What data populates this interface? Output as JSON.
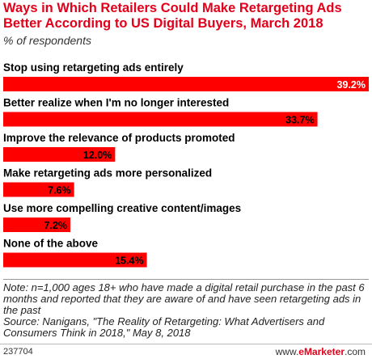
{
  "chart_data": {
    "type": "bar",
    "orientation": "horizontal",
    "title": "Ways in Which Retailers Could Make Retargeting Ads Better According to US Digital Buyers, March 2018",
    "subtitle": "% of respondents",
    "categories": [
      "Stop using retargeting ads entirely",
      "Better realize when I'm no longer interested",
      "Improve the relevance of products promoted",
      "Make retargeting ads more personalized",
      "Use more compelling creative content/images",
      "None of the above"
    ],
    "values": [
      39.2,
      33.7,
      12.0,
      7.6,
      7.2,
      15.4
    ],
    "value_labels": [
      "39.2%",
      "33.7%",
      "12.0%",
      "7.6%",
      "7.2%",
      "15.4%"
    ],
    "xlim": [
      0,
      39.2
    ],
    "grid": false,
    "legend": "none",
    "bar_color": "#ff0000"
  },
  "footer": {
    "note": "Note: n=1,000 ages 18+ who have made a digital retail purchase in the past 6 months and reported that they are aware of and have seen retargeting ads in the past",
    "source": "Source: Nanigans, \"The Reality of Retargeting: What Advertisers and Consumers Think in 2018,\" May 8, 2018",
    "chart_id": "237704",
    "brand_prefix": "www.",
    "brand_name": "eMarketer",
    "brand_suffix": ".com"
  }
}
